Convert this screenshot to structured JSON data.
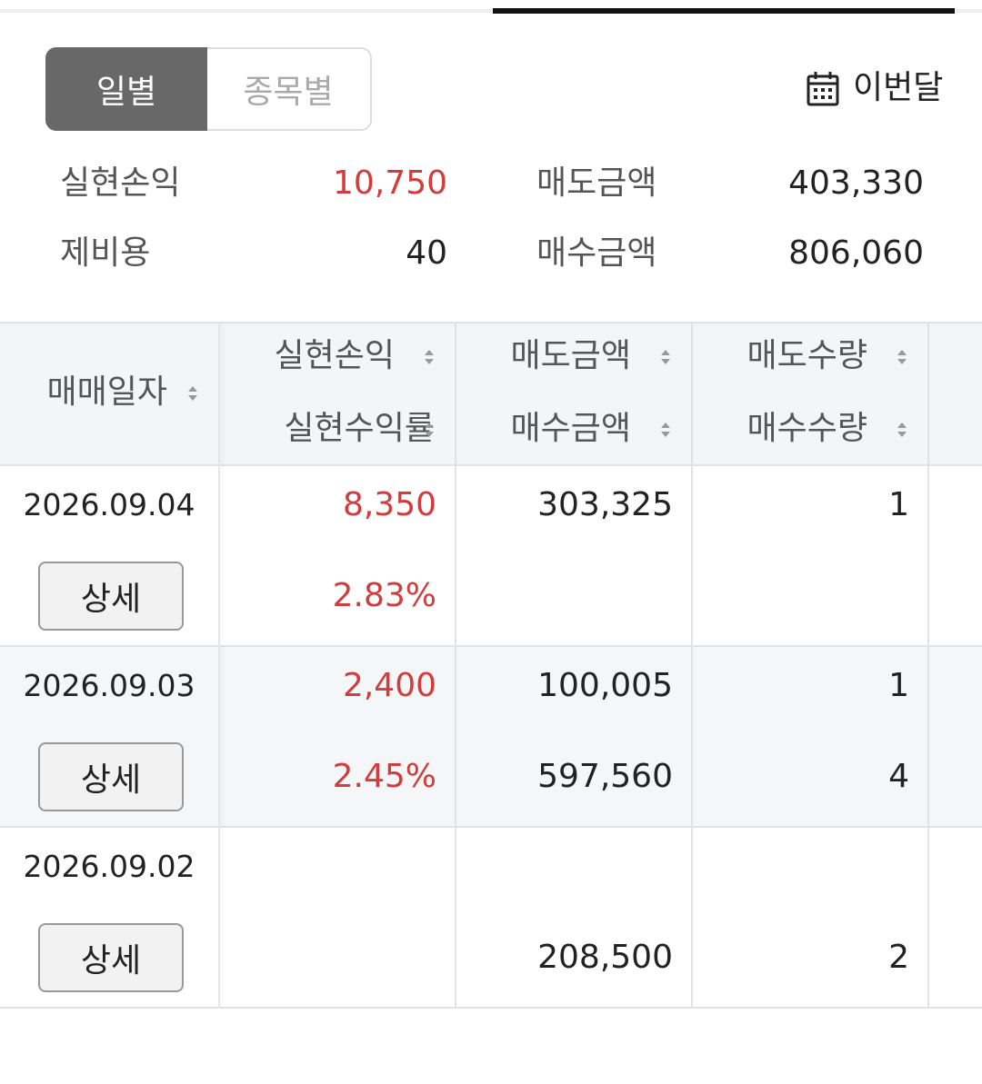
{
  "segment": {
    "tabs": [
      "일별",
      "종목별"
    ],
    "active": 0
  },
  "period": "이번달",
  "summary": [
    {
      "label": "실현손익",
      "value": "10,750",
      "highlight": true
    },
    {
      "label": "매도금액",
      "value": "403,330",
      "highlight": false
    },
    {
      "label": "제비용",
      "value": "40",
      "highlight": false
    },
    {
      "label": "매수금액",
      "value": "806,060",
      "highlight": false
    }
  ],
  "table": {
    "columns": [
      {
        "top": "매매일자"
      },
      {
        "top": "실현손익",
        "bottom": "실현수익률"
      },
      {
        "top": "매도금액",
        "bottom": "매수금액"
      },
      {
        "top": "매도수량",
        "bottom": "매수수량"
      }
    ],
    "rows": [
      {
        "date": "2026.09.04",
        "button": "상세",
        "cells": [
          {
            "top": "8,350",
            "bottom": "2.83%"
          },
          {
            "top": "303,325",
            "bottom": null
          },
          {
            "top": "1",
            "bottom": null
          }
        ]
      },
      {
        "date": "2026.09.03",
        "button": "상세",
        "cells": [
          {
            "top": "2,400",
            "bottom": "2.45%"
          },
          {
            "top": "100,005",
            "bottom": "597,560"
          },
          {
            "top": "1",
            "bottom": "4"
          }
        ]
      },
      {
        "date": "2026.09.02",
        "button": "상세",
        "cells": [
          {
            "top": null,
            "bottom": null
          },
          {
            "top": null,
            "bottom": "208,500"
          },
          {
            "top": null,
            "bottom": "2"
          }
        ]
      }
    ]
  }
}
